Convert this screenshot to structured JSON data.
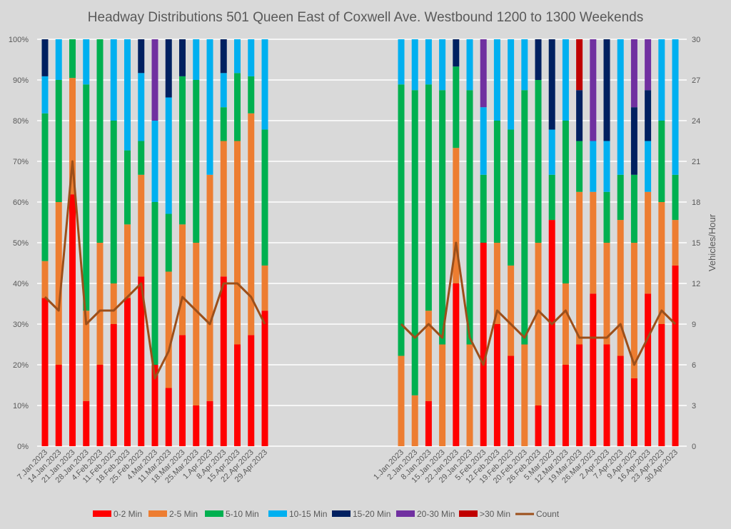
{
  "chart_data": {
    "type": "bar",
    "stacked": true,
    "percent_stacked": true,
    "title": "Headway Distributions 501 Queen  East of Coxwell Ave. Westbound 1200 to 1300 Weekends",
    "xlabel": "",
    "ylabel": "",
    "y2label": "Vehicles/Hour",
    "ylim": [
      0,
      100
    ],
    "y2lim": [
      0,
      30
    ],
    "yticks": [
      "0%",
      "10%",
      "20%",
      "30%",
      "40%",
      "50%",
      "60%",
      "70%",
      "80%",
      "90%",
      "100%"
    ],
    "y2ticks": [
      "0",
      "3",
      "6",
      "9",
      "12",
      "15",
      "18",
      "21",
      "24",
      "27",
      "30"
    ],
    "grid": true,
    "legend_position": "bottom",
    "series_names": [
      "0-2 Min",
      "2-5 Min",
      "5-10 Min",
      "10-15 Min",
      "15-20 Min",
      "20-30 Min",
      ">30 Min"
    ],
    "series_colors": [
      "#ff0000",
      "#ed7d31",
      "#00b050",
      "#00b0f0",
      "#002060",
      "#7030a0",
      "#c00000"
    ],
    "count_series": {
      "name": "Count",
      "color": "#9c4f1a"
    },
    "groups": [
      {
        "categories": [
          "7.Jan.2023",
          "14.Jan.2023",
          "21.Jan.2023",
          "28.Jan.2023",
          "4.Feb.2023",
          "11.Feb.2023",
          "18.Feb.2023",
          "25.Feb.2023",
          "4.Mar.2023",
          "11.Mar.2023",
          "18.Mar.2023",
          "25.Mar.2023",
          "1.Apr.2023",
          "8.Apr.2023",
          "15.Apr.2023",
          "22.Apr.2023",
          "29.Apr.2023"
        ],
        "cumulative_percent": [
          [
            36.4,
            45.5,
            81.8,
            90.9,
            100,
            100,
            100
          ],
          [
            20,
            60,
            90,
            100,
            100,
            100,
            100
          ],
          [
            61.9,
            90.5,
            100,
            100,
            100,
            100,
            100
          ],
          [
            11.1,
            33.3,
            88.9,
            100,
            100,
            100,
            100
          ],
          [
            20,
            50,
            100,
            100,
            100,
            100,
            100
          ],
          [
            30,
            40,
            80,
            100,
            100,
            100,
            100
          ],
          [
            36.4,
            54.5,
            72.7,
            100,
            100,
            100,
            100
          ],
          [
            41.7,
            66.7,
            75,
            91.7,
            100,
            100,
            100
          ],
          [
            20,
            20,
            60,
            80,
            80,
            100,
            100
          ],
          [
            14.3,
            42.9,
            57.1,
            85.7,
            100,
            100,
            100
          ],
          [
            27.3,
            54.5,
            90.9,
            90.9,
            100,
            100,
            100
          ],
          [
            10,
            50,
            90,
            100,
            100,
            100,
            100
          ],
          [
            11.1,
            66.7,
            66.7,
            100,
            100,
            100,
            100
          ],
          [
            41.7,
            75,
            83.3,
            91.7,
            100,
            100,
            100
          ],
          [
            25,
            75,
            91.7,
            100,
            100,
            100,
            100
          ],
          [
            27.3,
            81.8,
            90.9,
            100,
            100,
            100,
            100
          ],
          [
            33.3,
            44.4,
            77.8,
            100,
            100,
            100,
            100
          ]
        ],
        "count": [
          11,
          10,
          21,
          9,
          10,
          10,
          11,
          12,
          5,
          7,
          11,
          10,
          9,
          12,
          12,
          11,
          9
        ]
      },
      {
        "categories": [
          "1.Jan.2023",
          "2.Jan.2023",
          "8.Jan.2023",
          "15.Jan.2023",
          "22.Jan.2023",
          "29.Jan.2023",
          "5.Feb.2023",
          "12.Feb.2023",
          "19.Feb.2023",
          "20.Feb.2023",
          "26.Feb.2023",
          "5.Mar.2023",
          "12.Mar.2023",
          "19.Mar.2023",
          "26.Mar.2023",
          "2.Apr.2023",
          "7.Apr.2023",
          "9.Apr.2023",
          "16.Apr.2023",
          "23.Apr.2023",
          "30.Apr.2023"
        ],
        "cumulative_percent": [
          [
            0,
            22.2,
            88.9,
            100,
            100,
            100,
            100
          ],
          [
            0,
            12.5,
            87.5,
            100,
            100,
            100,
            100
          ],
          [
            11.1,
            33.3,
            88.9,
            100,
            100,
            100,
            100
          ],
          [
            0,
            25,
            87.5,
            100,
            100,
            100,
            100
          ],
          [
            40,
            73.3,
            93.3,
            93.3,
            100,
            100,
            100
          ],
          [
            0,
            25,
            87.5,
            100,
            100,
            100,
            100
          ],
          [
            50,
            50,
            66.7,
            83.3,
            83.3,
            100,
            100
          ],
          [
            30,
            50,
            80,
            100,
            100,
            100,
            100
          ],
          [
            22.2,
            44.4,
            77.8,
            100,
            100,
            100,
            100
          ],
          [
            0,
            25,
            87.5,
            100,
            100,
            100,
            100
          ],
          [
            10,
            50,
            90,
            90,
            100,
            100,
            100
          ],
          [
            55.6,
            55.6,
            66.7,
            77.8,
            100,
            100,
            100
          ],
          [
            20,
            40,
            80,
            100,
            100,
            100,
            100
          ],
          [
            25,
            62.5,
            75,
            75,
            87.5,
            87.5,
            100
          ],
          [
            37.5,
            62.5,
            62.5,
            75,
            75,
            100,
            100
          ],
          [
            25,
            50,
            62.5,
            75,
            100,
            100,
            100
          ],
          [
            22.2,
            55.6,
            66.7,
            100,
            100,
            100,
            100
          ],
          [
            16.7,
            50,
            66.7,
            66.7,
            83.3,
            100,
            100
          ],
          [
            37.5,
            62.5,
            62.5,
            75,
            87.5,
            100,
            100
          ],
          [
            30,
            60,
            80,
            100,
            100,
            100,
            100
          ],
          [
            44.4,
            55.6,
            66.7,
            100,
            100,
            100,
            100
          ]
        ],
        "count": [
          9,
          8,
          9,
          8,
          15,
          8,
          6,
          10,
          9,
          8,
          10,
          9,
          10,
          8,
          8,
          8,
          9,
          6,
          8,
          10,
          9
        ]
      }
    ],
    "legend": [
      "0-2 Min",
      "2-5 Min",
      "5-10 Min",
      "10-15 Min",
      "15-20 Min",
      "20-30 Min",
      ">30 Min",
      "Count"
    ]
  }
}
